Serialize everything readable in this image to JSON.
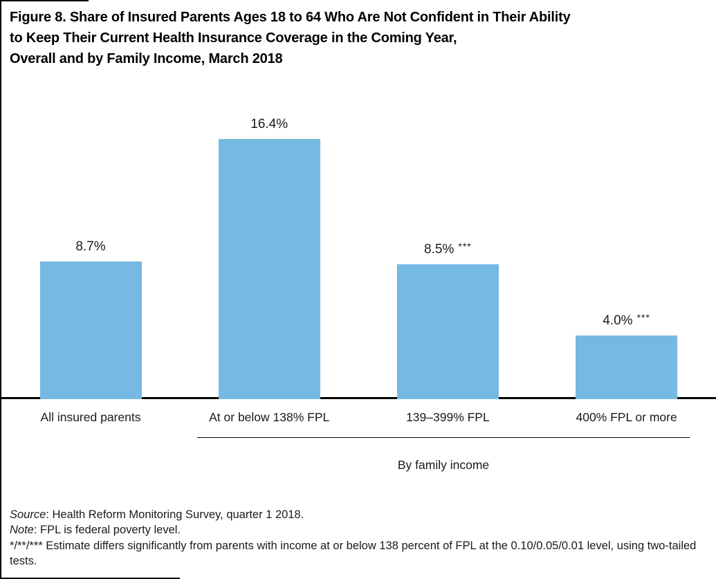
{
  "figure": {
    "title": "Figure 8. Share of Insured Parents Ages 18 to 64 Who Are Not Confident in Their Ability to Keep Their Current Health Insurance Coverage in the Coming Year, Overall and by Family Income, March 2018",
    "title_lines": [
      "Figure 8. Share of Insured Parents Ages 18 to 64 Who Are Not Confident in Their Ability",
      "to Keep Their Current Health Insurance Coverage in the Coming Year,",
      "Overall and by Family Income, March 2018"
    ]
  },
  "chart_data": {
    "type": "bar",
    "categories": [
      "All insured parents",
      "At or below 138% FPL",
      "139–399% FPL",
      "400% FPL or more"
    ],
    "values": [
      8.7,
      16.4,
      8.5,
      4.0
    ],
    "value_labels": [
      "8.7%",
      "16.4%",
      "8.5%",
      "4.0%"
    ],
    "annotations": [
      "",
      "",
      "***",
      "***"
    ],
    "title": "Share of insured parents not confident in ability to keep current coverage",
    "xlabel": "",
    "ylabel": "",
    "ylim": [
      0,
      18
    ],
    "grid": false,
    "y_axis_shown": false,
    "legend": "none",
    "bar_color": "#76B9E2",
    "axis_color": "#000000",
    "group_label": "By family income",
    "group_member_indices": [
      1,
      2,
      3
    ]
  },
  "notes": {
    "source_label": "Source",
    "source_text": ": Health Reform Monitoring Survey, quarter 1 2018.",
    "note_label": "Note",
    "note_text": ": FPL is federal poverty level.",
    "significance_text": "*/**/*** Estimate differs significantly from parents with income at or below 138 percent of FPL at the 0.10/0.05/0.01 level, using two-tailed tests."
  }
}
